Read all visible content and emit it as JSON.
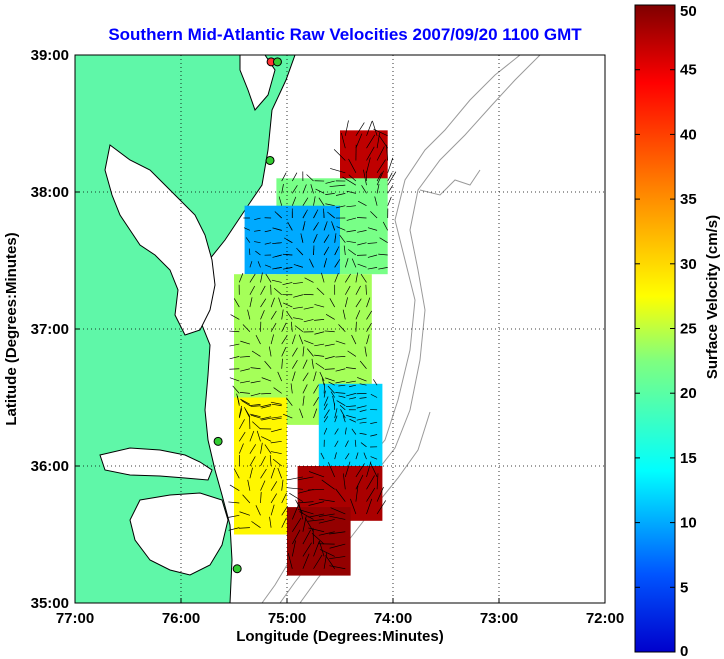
{
  "chart_data": {
    "type": "heatmap",
    "title": "Southern Mid-Atlantic Raw Velocities 2007/09/20 1100 GMT",
    "xlabel": "Longitude (Degrees:Minutes)",
    "ylabel": "Latitude (Degrees:Minutes)",
    "xlim": [
      -77,
      -72
    ],
    "ylim": [
      35,
      39
    ],
    "x_ticks": [
      {
        "value": -77,
        "label": "77:00"
      },
      {
        "value": -76,
        "label": "76:00"
      },
      {
        "value": -75,
        "label": "75:00"
      },
      {
        "value": -74,
        "label": "74:00"
      },
      {
        "value": -73,
        "label": "73:00"
      },
      {
        "value": -72,
        "label": "72:00"
      }
    ],
    "y_ticks": [
      {
        "value": 35,
        "label": "35:00"
      },
      {
        "value": 36,
        "label": "36:00"
      },
      {
        "value": 37,
        "label": "37:00"
      },
      {
        "value": 38,
        "label": "38:00"
      },
      {
        "value": 39,
        "label": "39:00"
      }
    ],
    "grid": true,
    "colorbar": {
      "label": "Surface Velocity (cm/s)",
      "range": [
        0,
        50
      ],
      "ticks": [
        {
          "value": 0,
          "label": "0"
        },
        {
          "value": 5,
          "label": "5"
        },
        {
          "value": 10,
          "label": "10"
        },
        {
          "value": 15,
          "label": "15"
        },
        {
          "value": 20,
          "label": "20"
        },
        {
          "value": 25,
          "label": "25"
        },
        {
          "value": 30,
          "label": "30"
        },
        {
          "value": 35,
          "label": "35"
        },
        {
          "value": 40,
          "label": "40"
        },
        {
          "value": 45,
          "label": "45"
        },
        {
          "value": 50,
          "label": "50"
        }
      ],
      "colormap": "jet"
    },
    "field_regions": [
      {
        "lat": [
          38.0,
          38.45
        ],
        "lon": [
          -74.05,
          -74.5
        ],
        "speed": 47
      },
      {
        "lat": [
          37.4,
          38.1
        ],
        "lon": [
          -74.05,
          -75.1
        ],
        "speed": 22
      },
      {
        "lat": [
          37.4,
          37.9
        ],
        "lon": [
          -74.5,
          -75.4
        ],
        "speed": 10
      },
      {
        "lat": [
          36.3,
          37.4
        ],
        "lon": [
          -74.2,
          -75.5
        ],
        "speed": 24
      },
      {
        "lat": [
          36.0,
          36.6
        ],
        "lon": [
          -74.1,
          -74.7
        ],
        "speed": 12
      },
      {
        "lat": [
          35.6,
          36.0
        ],
        "lon": [
          -74.1,
          -74.9
        ],
        "speed": 48
      },
      {
        "lat": [
          35.2,
          35.7
        ],
        "lon": [
          -74.4,
          -75.0
        ],
        "speed": 49
      },
      {
        "lat": [
          35.5,
          36.5
        ],
        "lon": [
          -75.0,
          -75.5
        ],
        "speed": 28
      }
    ],
    "stations": [
      {
        "lon": -75.15,
        "lat": 38.95,
        "color": "#ff3333"
      },
      {
        "lon": -75.09,
        "lat": 38.95,
        "color": "#33cc33"
      },
      {
        "lon": -75.16,
        "lat": 38.23,
        "color": "#33cc33"
      },
      {
        "lon": -75.65,
        "lat": 36.18,
        "color": "#33cc33"
      },
      {
        "lon": -75.47,
        "lat": 35.25,
        "color": "#33cc33"
      }
    ],
    "colors": {
      "land": "#5ff7a8",
      "coastline": "#000000",
      "bathymetry": "#9a9a9a",
      "title": "#0000ff",
      "station_outline": "#000000",
      "vectors": "#000000"
    }
  }
}
